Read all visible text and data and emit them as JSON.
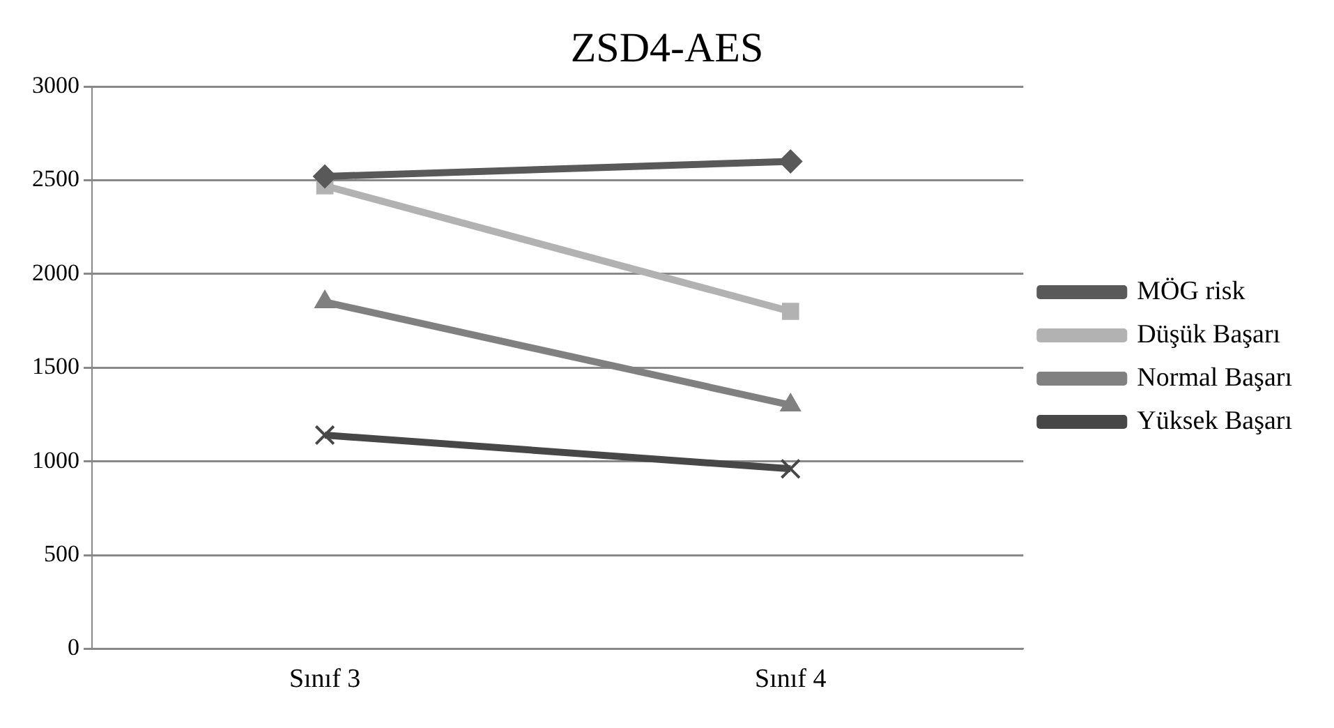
{
  "chart_data": {
    "type": "line",
    "title": "ZSD4-AES",
    "categories": [
      "Sınıf 3",
      "Sınıf 4"
    ],
    "series": [
      {
        "name": "MÖG risk",
        "color": "#595959",
        "values": [
          2520,
          2600
        ],
        "marker": "diamond"
      },
      {
        "name": "Düşük Başarı",
        "color": "#b2b2b2",
        "values": [
          2470,
          1800
        ],
        "marker": "square"
      },
      {
        "name": "Normal Başarı",
        "color": "#808080",
        "values": [
          1850,
          1300
        ],
        "marker": "triangle"
      },
      {
        "name": "Yüksek Başarı",
        "color": "#474747",
        "values": [
          1140,
          960
        ],
        "marker": "cross"
      }
    ],
    "ylim": [
      0,
      3000
    ],
    "yticks": [
      0,
      500,
      1000,
      1500,
      2000,
      2500,
      3000
    ],
    "grid": "y",
    "legend": "right",
    "line_style": "solid"
  }
}
